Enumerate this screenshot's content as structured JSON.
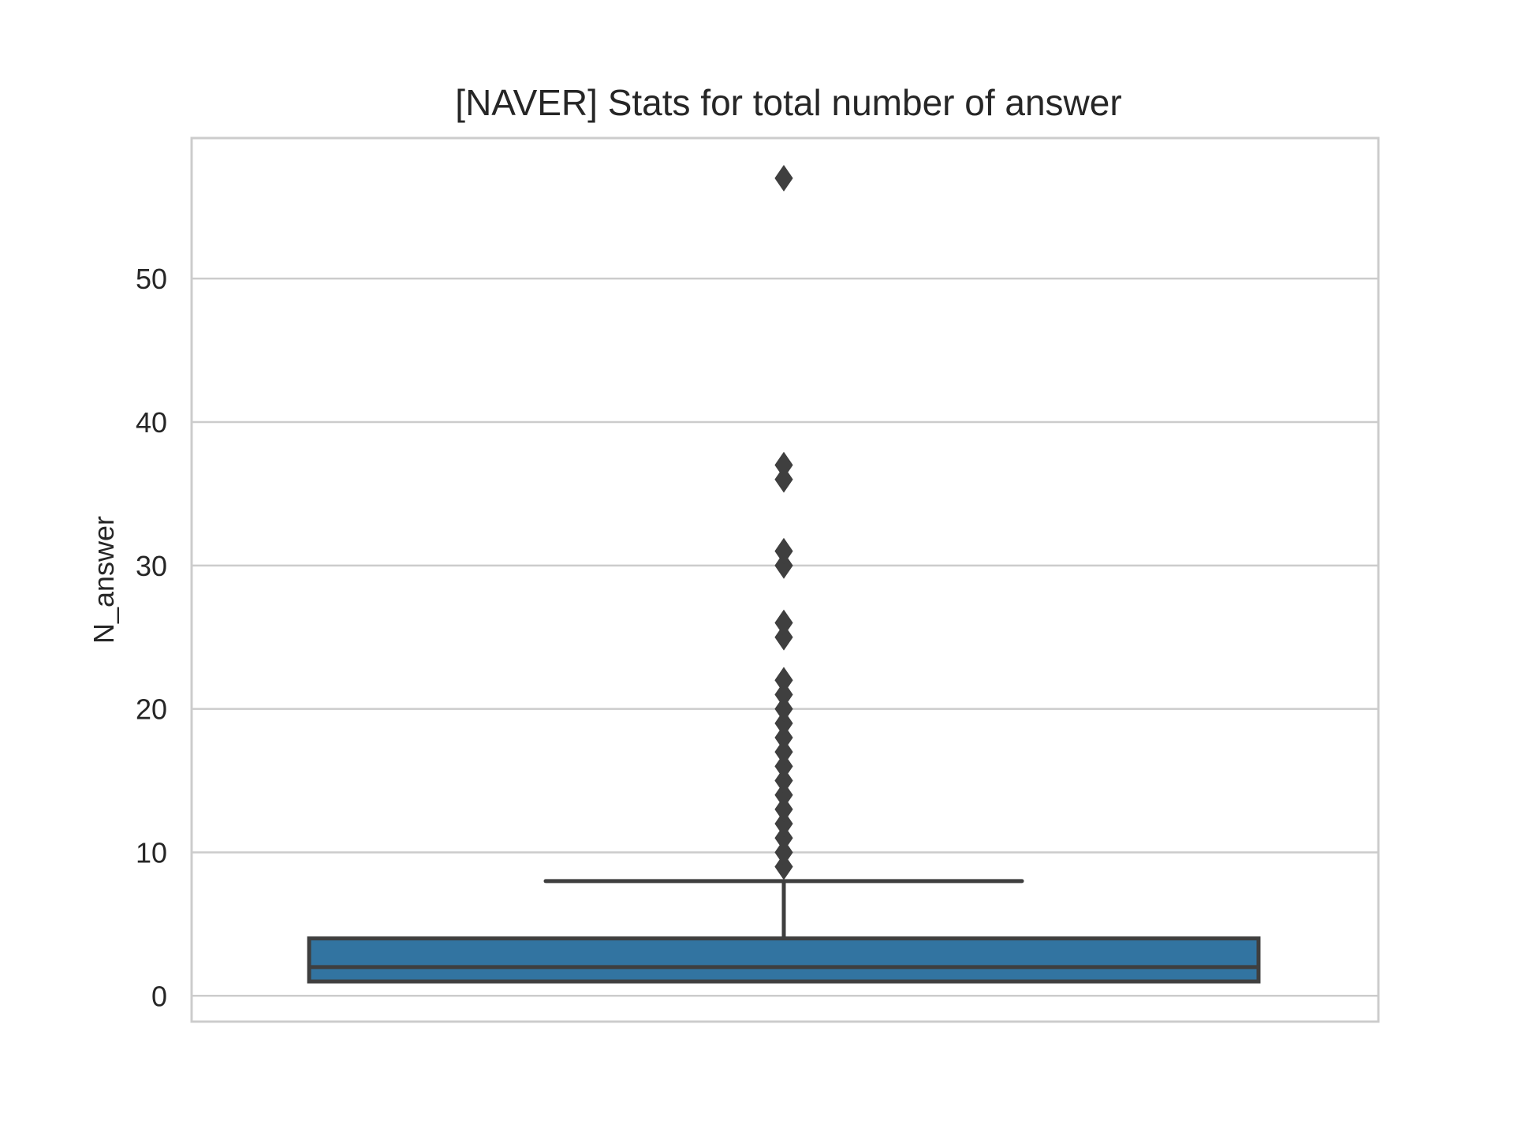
{
  "chart_data": {
    "type": "box",
    "title": "[NAVER] Stats for total number of answer",
    "xlabel": "",
    "ylabel": "N_answer",
    "ylim": [
      -1.8,
      59.8
    ],
    "yticks": [
      0,
      10,
      20,
      30,
      40,
      50
    ],
    "grid": true,
    "box": {
      "q1": 1,
      "median": 2,
      "q3": 4,
      "whisker_low": 1,
      "whisker_high": 8,
      "fliers": [
        9,
        10,
        11,
        12,
        13,
        14,
        15,
        16,
        17,
        18,
        19,
        20,
        21,
        22,
        25,
        26,
        30,
        31,
        36,
        37,
        57
      ]
    },
    "colors": {
      "box_fill": "#3274a1",
      "line": "#3f3f3f",
      "grid": "#cccccc",
      "axis_border": "#cccccc"
    }
  }
}
